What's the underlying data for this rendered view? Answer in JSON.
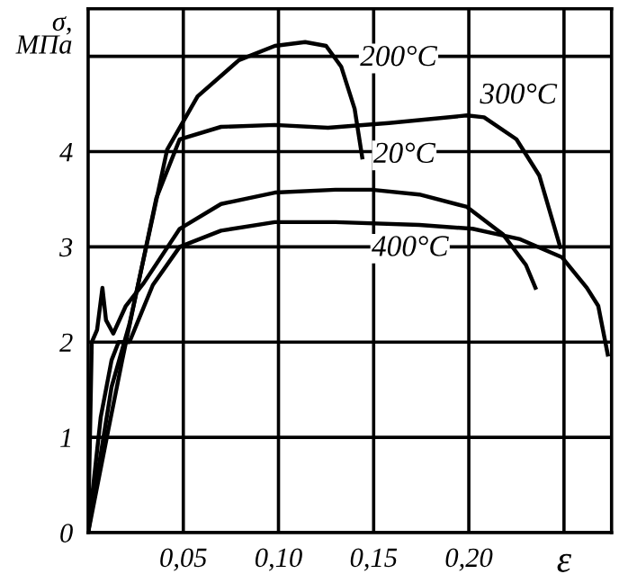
{
  "chart_data": {
    "type": "line",
    "xlabel": "ε",
    "ylabel": "σ,\nМПа",
    "xlim": [
      0,
      0.275
    ],
    "ylim": [
      0,
      5.5
    ],
    "xticks": [
      {
        "value": 0.05,
        "label": "0,05"
      },
      {
        "value": 0.1,
        "label": "0,10"
      },
      {
        "value": 0.15,
        "label": "0,15"
      },
      {
        "value": 0.2,
        "label": "0,20"
      },
      {
        "value": 0.25,
        "label": null
      }
    ],
    "yticks": [
      0,
      1,
      2,
      3,
      4,
      {
        "value": 5,
        "label": null
      }
    ],
    "grid": true,
    "marker": "none",
    "line_style": "solid",
    "series": [
      {
        "color": "#000000",
        "x": [
          0,
          0.0123,
          0.0217,
          0.0264,
          0.034,
          0.0415,
          0.0575,
          0.0792,
          0.0981,
          0.114,
          0.125,
          0.133,
          0.14,
          0.144
        ],
        "values": [
          0,
          1.53,
          2.19,
          2.62,
          3.32,
          4.02,
          4.58,
          4.96,
          5.11,
          5.15,
          5.11,
          4.89,
          4.45,
          3.94
        ]
      },
      {
        "color": "#000000",
        "x": [
          0,
          0.0104,
          0.0179,
          0.0264,
          0.0358,
          0.0481,
          0.0698,
          0.0981,
          0.126,
          0.158,
          0.199,
          0.208,
          0.225,
          0.237,
          0.248
        ],
        "values": [
          0,
          1.06,
          1.81,
          2.62,
          3.51,
          4.13,
          4.26,
          4.28,
          4.25,
          4.3,
          4.38,
          4.36,
          4.13,
          3.75,
          3.0
        ]
      },
      {
        "color": "#000000",
        "x": [
          0,
          0.0019,
          0.0047,
          0.0075,
          0.0094,
          0.0132,
          0.0198,
          0.0292,
          0.0481,
          0.0698,
          0.0981,
          0.13,
          0.149,
          0.174,
          0.199,
          0.218,
          0.23,
          0.235
        ],
        "values": [
          0,
          2.0,
          2.13,
          2.57,
          2.23,
          2.09,
          2.38,
          2.62,
          3.19,
          3.45,
          3.57,
          3.6,
          3.6,
          3.55,
          3.42,
          3.13,
          2.81,
          2.57
        ]
      },
      {
        "color": "#000000",
        "x": [
          0,
          0.0066,
          0.0123,
          0.016,
          0.0217,
          0.0264,
          0.034,
          0.0481,
          0.0698,
          0.0981,
          0.13,
          0.174,
          0.202,
          0.227,
          0.249,
          0.262,
          0.268,
          0.273
        ],
        "values": [
          0,
          1.21,
          1.81,
          2.0,
          2.0,
          2.23,
          2.6,
          3.0,
          3.17,
          3.26,
          3.26,
          3.23,
          3.19,
          3.08,
          2.89,
          2.57,
          2.38,
          1.87
        ]
      }
    ],
    "annotations": [
      "200°C",
      "300°C",
      "20°C",
      "400°C"
    ]
  }
}
